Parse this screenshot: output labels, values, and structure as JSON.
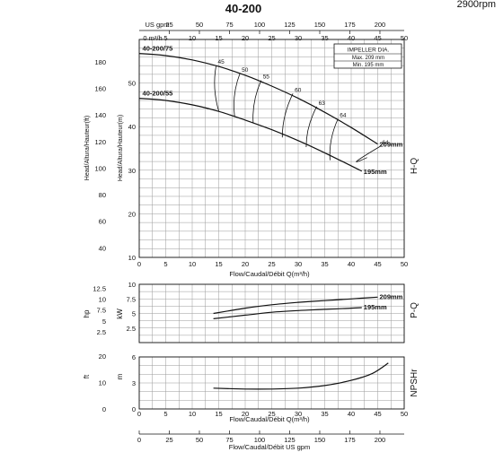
{
  "header": {
    "model": "40-200",
    "speed": "2900rpm"
  },
  "impeller_box": {
    "title": "IMPELLER DIA.",
    "max": "Max.  209 mm",
    "min": "Min.  195 mm"
  },
  "axes": {
    "top_usgpm_label": "US gpm",
    "top_m3h_label": "0 m³/h",
    "head_ft_label": "Head/Altura/Hauteur(ft)",
    "head_m_label": "Head/Altura/Hauteur(m)",
    "flow_label": "Flow/Caudal/Débit Q(m³/h)",
    "flow_label_2": "Flow/Caudal/Débit Q(m³/h)",
    "bottom_usgpm_label": "Flow/Caudal/Débit  US gpm",
    "hp_label": "hp",
    "kw_label": "kW",
    "ft_label": "ft",
    "m_label": "m",
    "hq_tag": "H-Q",
    "pq_tag": "P-Q",
    "npsh_tag": "NPSHr"
  },
  "chart_data": [
    {
      "type": "line",
      "name": "H-Q",
      "x_range": [
        0,
        50
      ],
      "y_range_m": [
        10,
        60
      ],
      "y_range_ft": [
        40,
        190
      ],
      "x_ticks": [
        0,
        5,
        10,
        15,
        20,
        25,
        30,
        35,
        40,
        45,
        50
      ],
      "y_ticks_m": [
        10,
        20,
        30,
        40,
        50
      ],
      "y_ticks_ft": [
        40,
        60,
        80,
        100,
        120,
        140,
        160,
        180
      ],
      "usgpm_ticks": [
        25,
        50,
        75,
        100,
        125,
        150,
        175,
        200
      ],
      "m3h_ticks_top": [
        5,
        10,
        15,
        20,
        25,
        30,
        35,
        40,
        45,
        50
      ],
      "grid": true,
      "series": [
        {
          "name": "209mm",
          "curve_label": "40-200/75",
          "x": [
            0,
            5,
            10,
            15,
            20,
            25,
            30,
            35,
            40,
            45
          ],
          "y": [
            56.8,
            56.3,
            55.3,
            53.8,
            51.8,
            49.3,
            46.5,
            43.3,
            39.8,
            36.0
          ]
        },
        {
          "name": "195mm",
          "curve_label": "40-200/55",
          "x": [
            0,
            5,
            10,
            15,
            20,
            25,
            30,
            35,
            40,
            42
          ],
          "y": [
            46.5,
            46.0,
            45.0,
            43.5,
            41.5,
            39.3,
            36.8,
            34.0,
            31.0,
            29.8
          ]
        }
      ],
      "efficiency": [
        {
          "label": "45",
          "x": [
            14.5,
            15.0
          ],
          "y": [
            54.0,
            43.6
          ]
        },
        {
          "label": "50",
          "x": [
            19.0,
            18.0
          ],
          "y": [
            52.2,
            42.4
          ]
        },
        {
          "label": "55",
          "x": [
            23.0,
            21.5
          ],
          "y": [
            50.6,
            40.8
          ]
        },
        {
          "label": "60",
          "x": [
            29.0,
            27.0
          ],
          "y": [
            47.6,
            37.5
          ]
        },
        {
          "label": "63",
          "x": [
            33.5,
            31.5
          ],
          "y": [
            44.6,
            35.3
          ]
        },
        {
          "label": "64",
          "x": [
            37.5,
            36.0
          ],
          "y": [
            41.8,
            32.3
          ]
        },
        {
          "label": "64",
          "x": [
            45.5,
            43.0
          ],
          "y": [
            35.5,
            32.9
          ]
        }
      ]
    },
    {
      "type": "line",
      "name": "P-Q",
      "x_range": [
        0,
        50
      ],
      "y_range_kw": [
        0,
        10
      ],
      "y_ticks_kw": [
        2.5,
        5,
        7.5,
        10
      ],
      "y_ticks_hp": [
        2.5,
        5,
        7.5,
        10,
        12.5
      ],
      "x_ticks": [
        0,
        5,
        10,
        15,
        20,
        25,
        30,
        35,
        40,
        45,
        50
      ],
      "grid": true,
      "series": [
        {
          "name": "209mm",
          "x": [
            14,
            20,
            25,
            30,
            35,
            40,
            45
          ],
          "y": [
            5.0,
            5.9,
            6.5,
            6.9,
            7.2,
            7.5,
            7.8
          ]
        },
        {
          "name": "195mm",
          "x": [
            14,
            20,
            25,
            30,
            35,
            40,
            42
          ],
          "y": [
            4.1,
            4.7,
            5.2,
            5.5,
            5.7,
            5.9,
            6.0
          ]
        }
      ]
    },
    {
      "type": "line",
      "name": "NPSHr",
      "x_range": [
        0,
        50
      ],
      "y_range_m": [
        0,
        6
      ],
      "y_ticks_m": [
        0,
        3,
        6
      ],
      "y_ticks_ft": [
        0,
        10,
        20
      ],
      "x_ticks": [
        0,
        5,
        10,
        15,
        20,
        25,
        30,
        35,
        40,
        45,
        50
      ],
      "bottom_usgpm_ticks": [
        0,
        25,
        50,
        75,
        100,
        125,
        150,
        175,
        200
      ],
      "grid": true,
      "series": [
        {
          "name": "NPSHr",
          "x": [
            14,
            20,
            25,
            30,
            35,
            40,
            44,
            47
          ],
          "y": [
            2.4,
            2.3,
            2.3,
            2.4,
            2.7,
            3.3,
            4.1,
            5.3
          ]
        }
      ]
    }
  ],
  "colors": {
    "line": "#111111",
    "grid": "#9a9a9a",
    "background": "#ffffff"
  }
}
